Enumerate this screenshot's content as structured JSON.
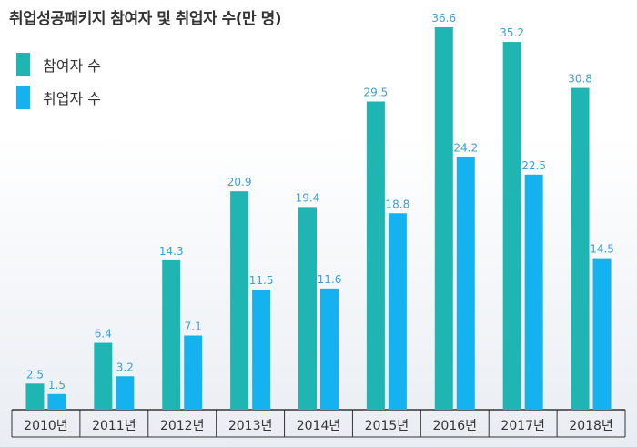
{
  "chart_data": {
    "type": "bar",
    "title": "취업성공패키지 참여자 및 취업자 수(만 명)",
    "categories": [
      "2010년",
      "2011년",
      "2012년",
      "2013년",
      "2014년",
      "2015년",
      "2016년",
      "2017년",
      "2018년"
    ],
    "series": [
      {
        "name": "참여자 수",
        "color": "#1eb5b3",
        "values": [
          2.5,
          6.4,
          14.3,
          20.9,
          19.4,
          29.5,
          36.6,
          35.2,
          30.8
        ],
        "labels": [
          "2.5",
          "6.4",
          "14.3",
          "20.9",
          "19.4",
          "29.5",
          "36.6",
          "35.2",
          "30.8"
        ]
      },
      {
        "name": "취업자 수",
        "color": "#14b3ef",
        "values": [
          1.5,
          3.2,
          7.1,
          11.5,
          11.6,
          18.8,
          24.2,
          22.5,
          14.5
        ],
        "labels": [
          "1.5",
          "3.2",
          "7.1",
          "11.5",
          "11.6",
          "18.8",
          "24.2",
          "22.5",
          "14.5"
        ]
      }
    ],
    "xlabel": "",
    "ylabel": "",
    "ylim": [
      0,
      36.6
    ],
    "grid": false,
    "legend_position": "top-left",
    "label_color": "#3aa0d8"
  }
}
